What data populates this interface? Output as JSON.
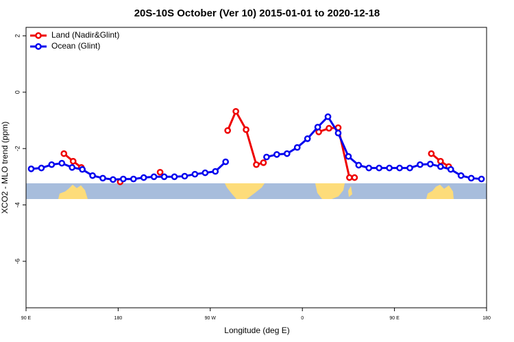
{
  "chart_data": {
    "type": "line",
    "title": "20S-10S October (Ver 10)   2015-01-01 to 2020-12-18",
    "x_label": "Longitude (deg E)",
    "y_label": "XCO2 - MLO trend (ppm)",
    "xlim": [
      90,
      540
    ],
    "ylim": [
      -7.65,
      2.3
    ],
    "xticks": [
      {
        "value": 90,
        "label": "90 E"
      },
      {
        "value": 180,
        "label": "180"
      },
      {
        "value": 270,
        "label": "90 W"
      },
      {
        "value": 360,
        "label": "0"
      },
      {
        "value": 450,
        "label": "90 E"
      },
      {
        "value": 540,
        "label": "180"
      }
    ],
    "yticks": [
      2,
      0,
      -2,
      -4,
      -6
    ],
    "legend": "top-left",
    "series": [
      {
        "name": "Land (Nadir&Glint)",
        "color": "#ee0000",
        "x": [
          127,
          136,
          144,
          null,
          182,
          null,
          221,
          null,
          287,
          295,
          305,
          315,
          322,
          null,
          376,
          386,
          395,
          406,
          411,
          null,
          486,
          495,
          503
        ],
        "values": [
          -2.18,
          -2.45,
          -2.67,
          null,
          -3.18,
          null,
          -2.84,
          null,
          -1.36,
          -0.68,
          -1.33,
          -2.57,
          -2.5,
          null,
          -1.41,
          -1.28,
          -1.26,
          -3.03,
          -3.03,
          null,
          -2.18,
          -2.45,
          -2.64
        ]
      },
      {
        "name": "Ocean (Glint)",
        "color": "#0000ee",
        "x": [
          95,
          105,
          115,
          125,
          135,
          145,
          155,
          165,
          175,
          185,
          195,
          205,
          215,
          225,
          235,
          245,
          255,
          265,
          275,
          285,
          null,
          325,
          335,
          345,
          355,
          365,
          375,
          385,
          395,
          405,
          415,
          425,
          435,
          445,
          455,
          465,
          475,
          485,
          495,
          505,
          515,
          525,
          535
        ],
        "values": [
          -2.72,
          -2.69,
          -2.57,
          -2.52,
          -2.67,
          -2.74,
          -2.96,
          -3.05,
          -3.1,
          -3.08,
          -3.08,
          -3.03,
          -3.0,
          -3.0,
          -3.0,
          -2.98,
          -2.91,
          -2.86,
          -2.81,
          -2.47,
          null,
          -2.3,
          -2.21,
          -2.18,
          -1.96,
          -1.65,
          -1.24,
          -0.87,
          -1.45,
          -2.28,
          -2.59,
          -2.69,
          -2.69,
          -2.69,
          -2.69,
          -2.69,
          -2.57,
          -2.55,
          -2.64,
          -2.74,
          -2.96,
          -3.05,
          -3.08
        ]
      }
    ]
  }
}
